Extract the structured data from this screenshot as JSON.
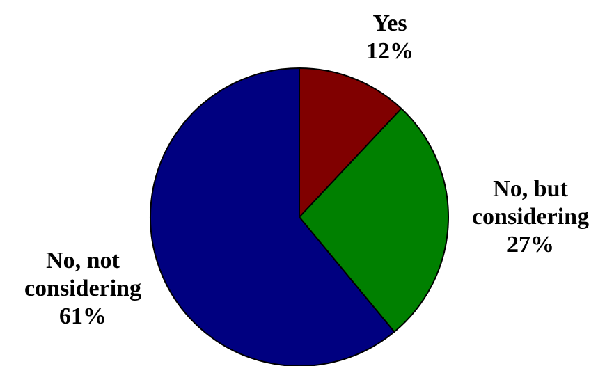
{
  "chart_data": {
    "type": "pie",
    "slices": [
      {
        "name_lines": [
          "Yes"
        ],
        "value": 12,
        "value_label": "12%",
        "color": "#800000"
      },
      {
        "name_lines": [
          "No, but",
          "considering"
        ],
        "value": 27,
        "value_label": "27%",
        "color": "#008000"
      },
      {
        "name_lines": [
          "No, not",
          "considering"
        ],
        "value": 61,
        "value_label": "61%",
        "color": "#000080"
      }
    ],
    "start_angle_deg": 0,
    "direction": "clockwise",
    "outline_color": "#000000",
    "legend": "none"
  }
}
